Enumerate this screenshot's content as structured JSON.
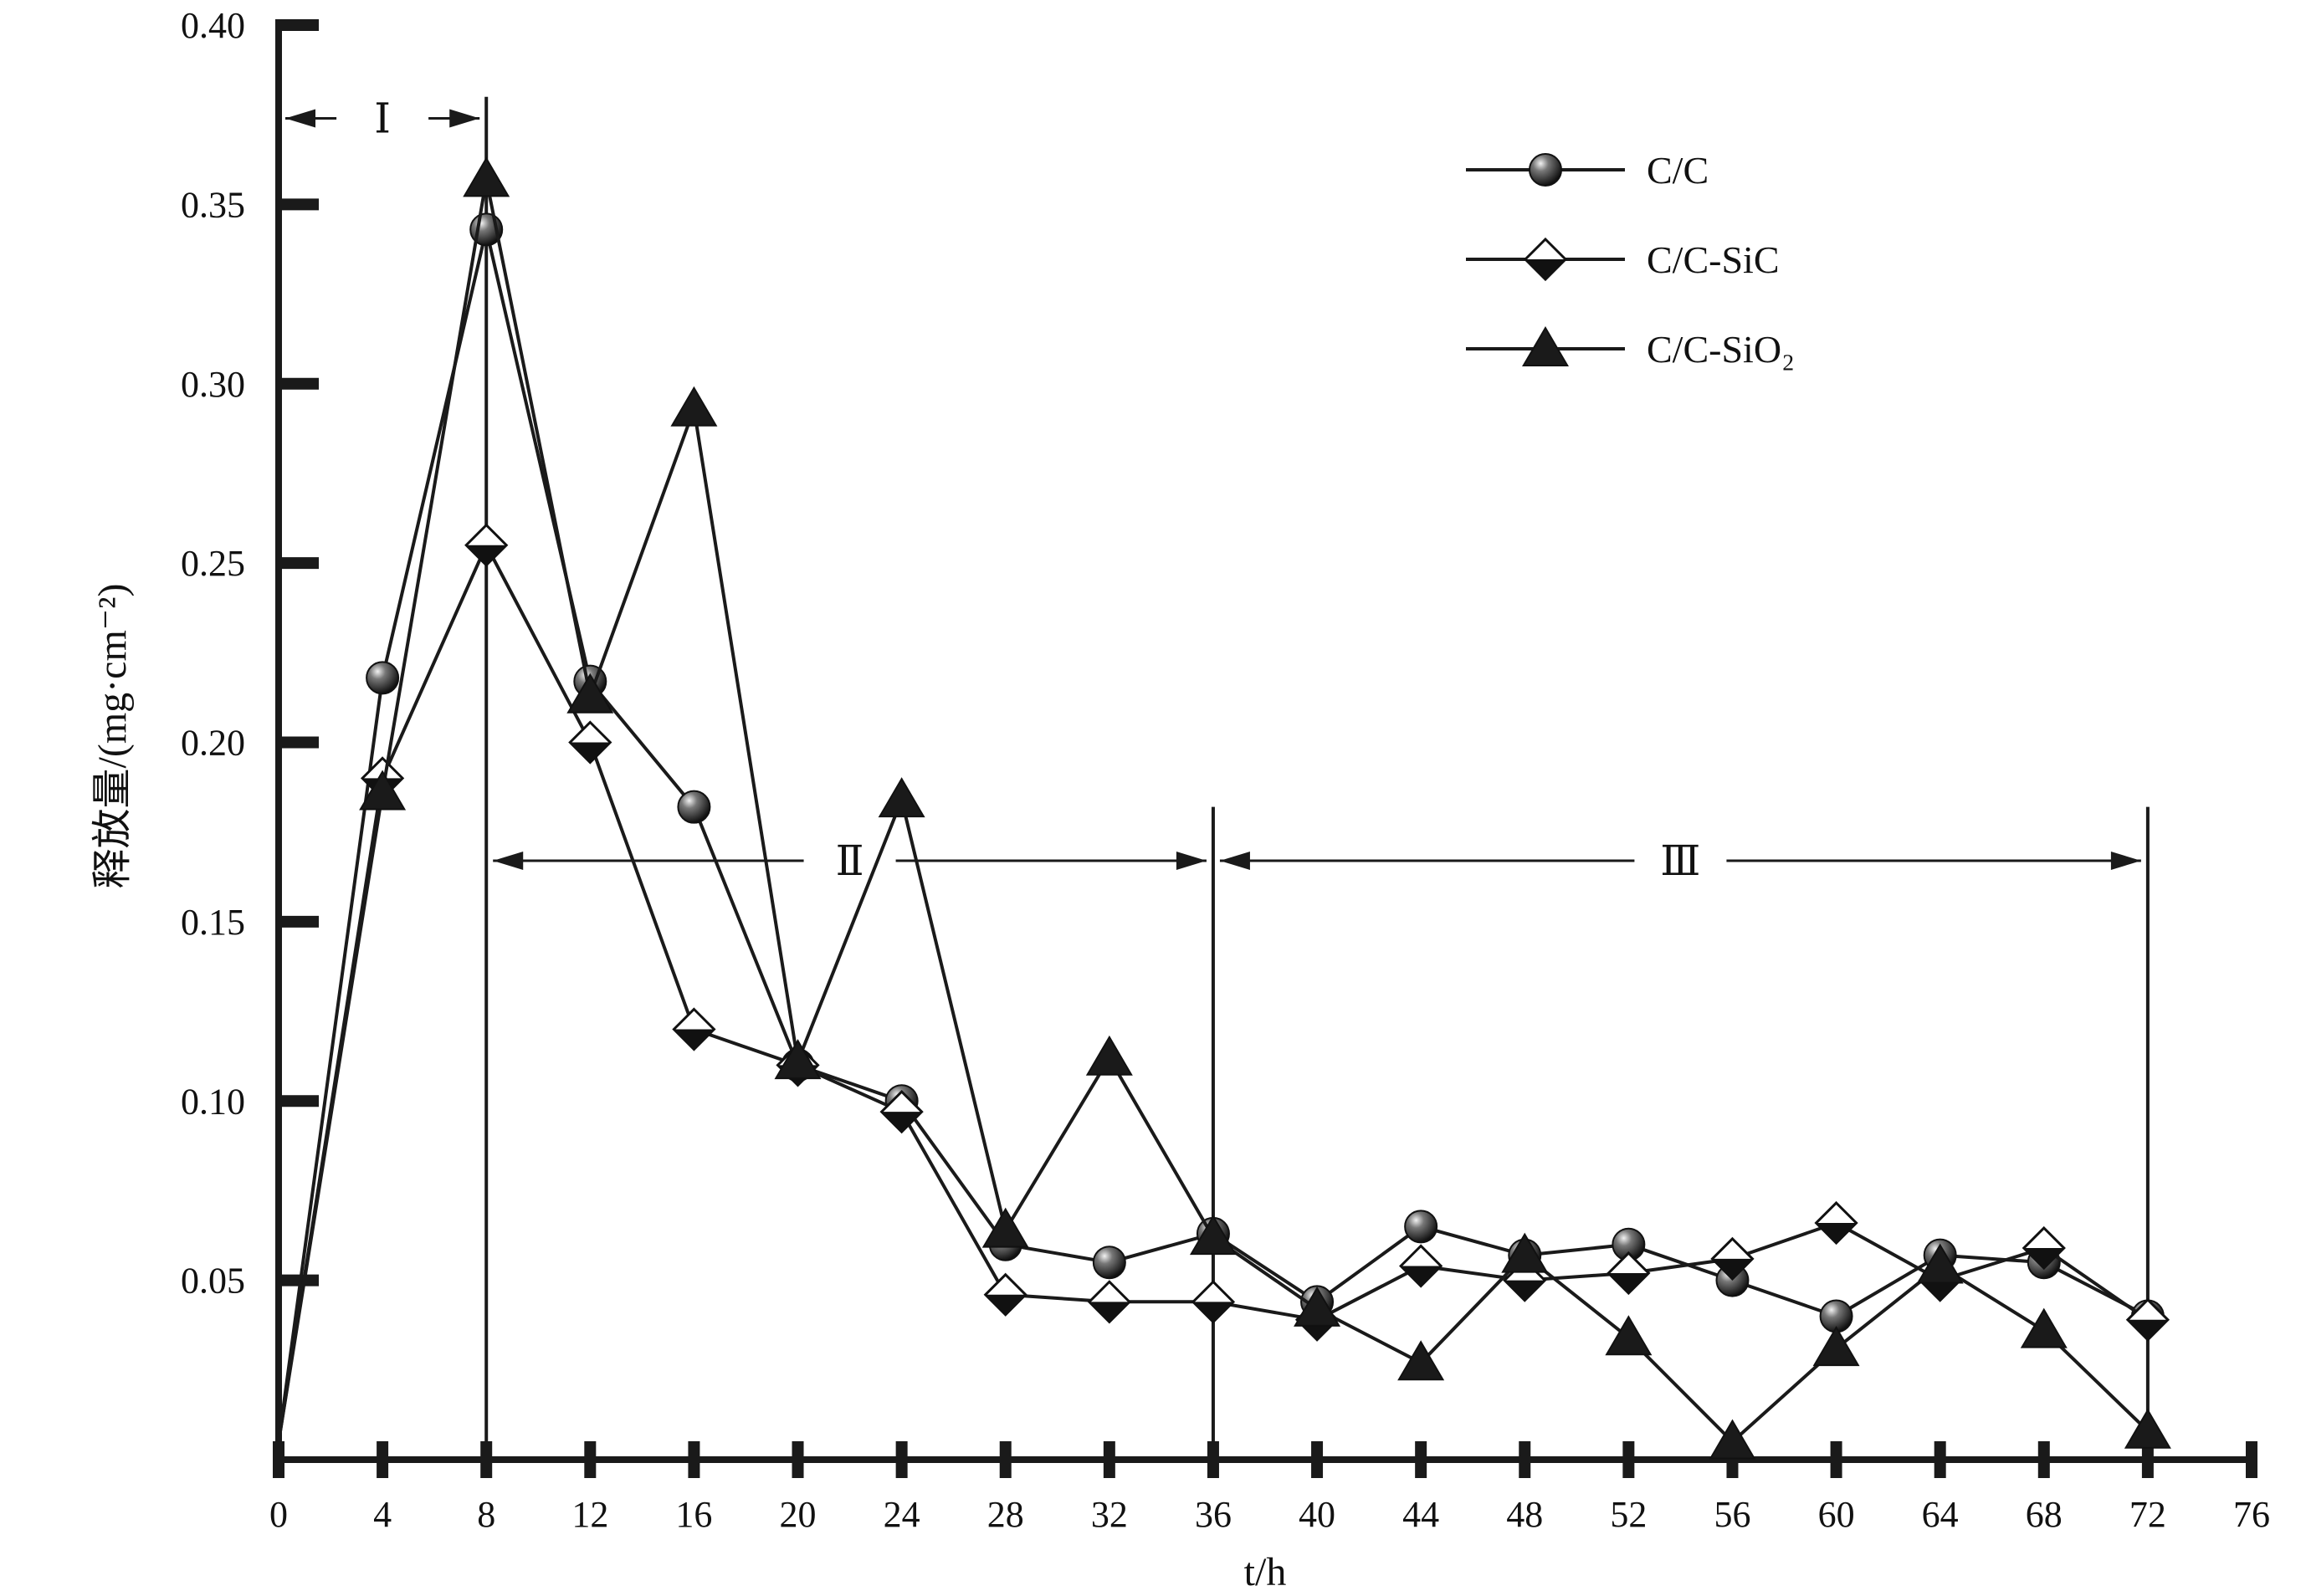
{
  "chart_data": {
    "type": "line",
    "title": "",
    "xlabel": "t/h",
    "ylabel": "释放量/(mg·cm⁻²)",
    "xlim": [
      0,
      76
    ],
    "ylim": [
      0,
      0.4
    ],
    "x_ticks": [
      "0",
      "4",
      "8",
      "12",
      "16",
      "20",
      "24",
      "28",
      "32",
      "36",
      "40",
      "44",
      "48",
      "52",
      "56",
      "60",
      "64",
      "68",
      "72",
      "76"
    ],
    "y_ticks": [
      "0.05",
      "0.10",
      "0.15",
      "0.20",
      "0.25",
      "0.30",
      "0.35",
      "0.40"
    ],
    "grid": false,
    "legend_position": "top-right",
    "x": [
      0,
      4,
      8,
      12,
      16,
      20,
      24,
      28,
      32,
      36,
      40,
      44,
      48,
      52,
      56,
      60,
      64,
      68,
      72
    ],
    "series": [
      {
        "name": "C/C",
        "marker": "circle",
        "values": [
          0.005,
          0.218,
          0.343,
          0.217,
          0.182,
          0.11,
          0.1,
          0.06,
          0.055,
          0.063,
          0.044,
          0.065,
          0.057,
          0.06,
          0.05,
          0.04,
          0.057,
          0.055,
          0.04
        ]
      },
      {
        "name": "C/C-SiC",
        "marker": "diamond",
        "values": [
          0.005,
          0.19,
          0.255,
          0.2,
          0.12,
          0.11,
          0.097,
          0.046,
          0.044,
          0.044,
          0.039,
          0.054,
          0.05,
          0.052,
          0.056,
          0.066,
          0.05,
          0.059,
          0.039
        ]
      },
      {
        "name": "C/C-SiO₂",
        "marker": "triangle",
        "values": [
          0.005,
          0.186,
          0.357,
          0.213,
          0.293,
          0.111,
          0.184,
          0.064,
          0.112,
          0.062,
          0.042,
          0.027,
          0.057,
          0.034,
          0.005,
          0.031,
          0.054,
          0.036,
          0.008
        ]
      }
    ],
    "regions": [
      {
        "label": "Ⅰ",
        "x_start": 0,
        "x_end": 8,
        "y": 0.374
      },
      {
        "label": "Ⅱ",
        "x_start": 8,
        "x_end": 36,
        "y": 0.167
      },
      {
        "label": "Ⅲ",
        "x_start": 36,
        "x_end": 72,
        "y": 0.167
      }
    ],
    "boundary_lines": [
      {
        "x": 8,
        "y_top": 0.38
      },
      {
        "x": 36,
        "y_top": 0.182
      },
      {
        "x": 72,
        "y_top": 0.182
      }
    ],
    "colors": {
      "line": "#1a1a1a",
      "axis": "#1a1a1a",
      "marker_fill_solid": "#1a1a1a",
      "marker_fill_open": "#ffffff"
    }
  }
}
